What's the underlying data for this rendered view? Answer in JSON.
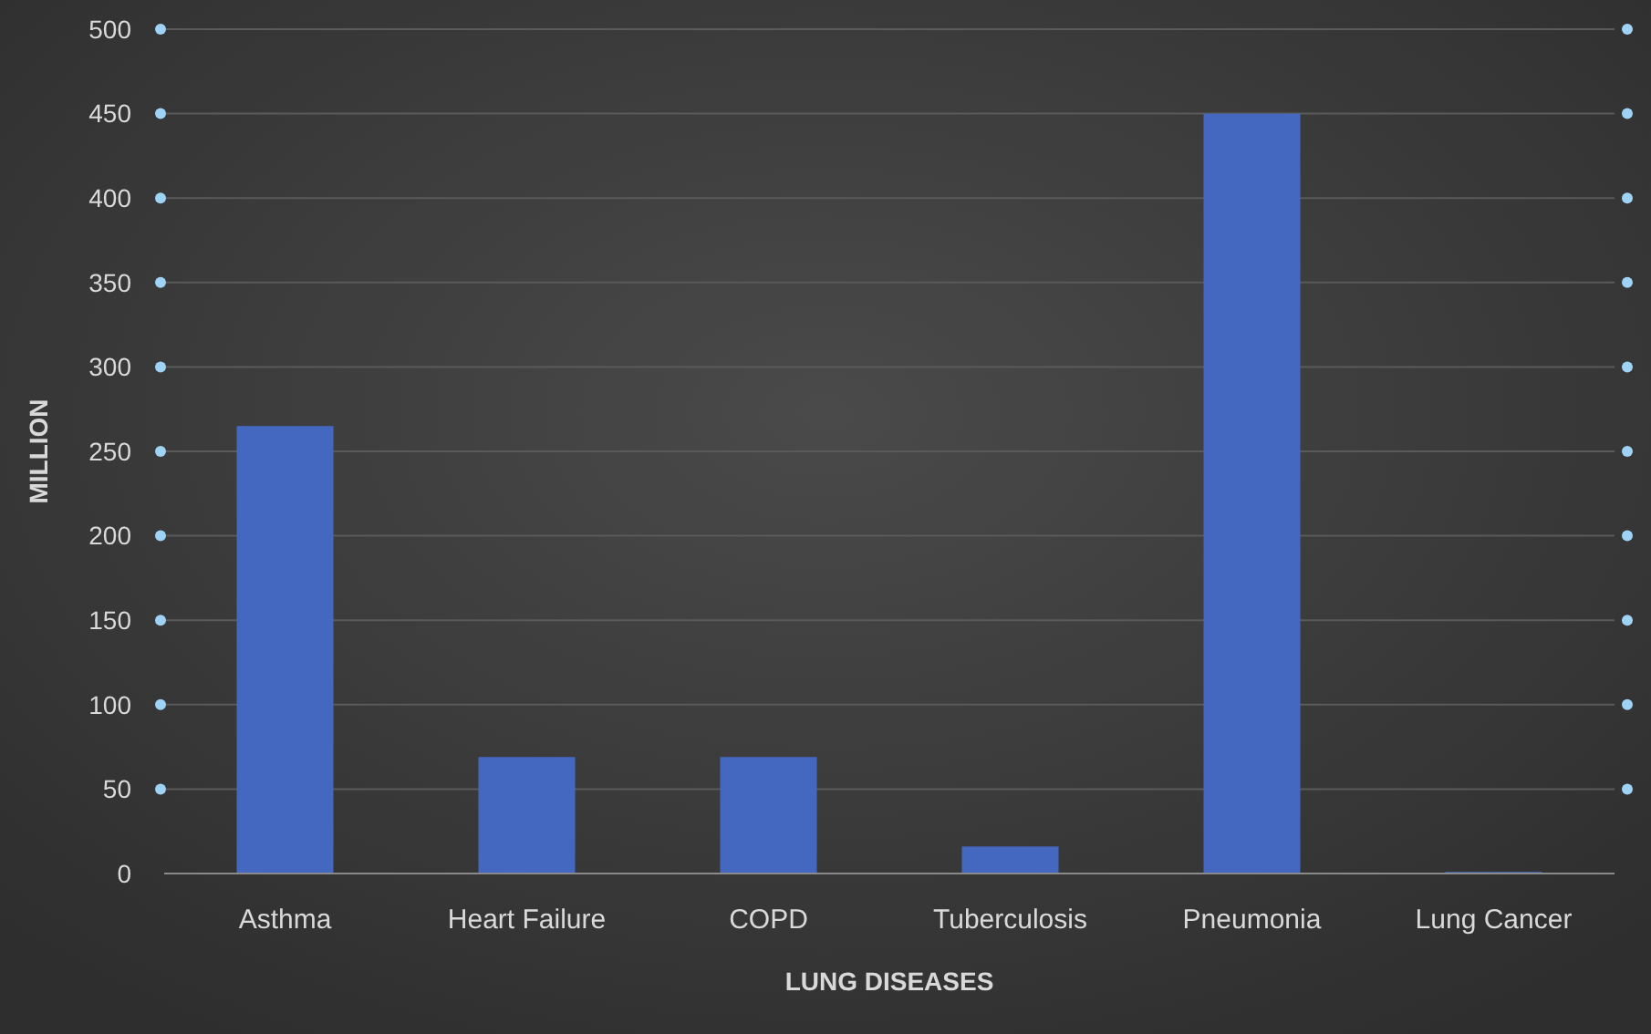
{
  "chart_data": {
    "type": "bar",
    "xlabel": "LUNG DISEASES",
    "ylabel": "MILLION",
    "categories": [
      "Asthma",
      "Heart Failure",
      "COPD",
      "Tuberculosis",
      "Pneumonia",
      "Lung Cancer"
    ],
    "values": [
      265,
      69,
      69,
      16,
      450,
      1
    ],
    "color": "#4468c0",
    "ylim": [
      0,
      500
    ],
    "yticks": [
      0,
      50,
      100,
      150,
      200,
      250,
      300,
      350,
      400,
      450,
      500
    ],
    "grid": "y"
  }
}
